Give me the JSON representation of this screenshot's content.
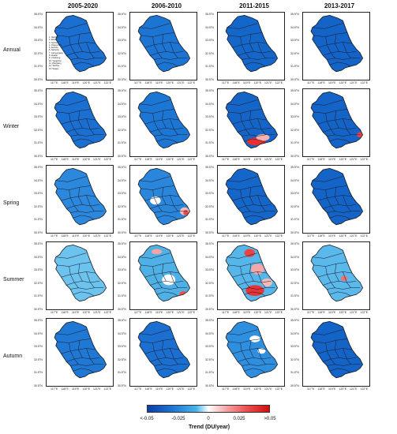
{
  "columns": [
    "2005-2020",
    "2006-2010",
    "2011-2015",
    "2013-2017"
  ],
  "rows": [
    "Annual",
    "Winter",
    "Spring",
    "Summer",
    "Autumn"
  ],
  "y_ticks": [
    "35.5°N",
    "34.5°N",
    "33.5°N",
    "32.5°N",
    "31.5°N",
    "30.5°N"
  ],
  "x_ticks": [
    "117°E",
    "118°E",
    "119°E",
    "120°E",
    "121°E",
    "122°E"
  ],
  "city_legend": [
    "1. Nanjing",
    "2. Wuxi",
    "3. Xuzhou",
    "4. Changzhou",
    "5. Suzhou",
    "6. Nantong",
    "7. Lianyungang",
    "8. Huaian",
    "9. Yancheng",
    "10. Yangzhou",
    "11. Zhenjiang",
    "12. Taizhou",
    "13. Suqian"
  ],
  "colorbar": {
    "ticks": [
      "<-0.05",
      "-0.025",
      "0",
      "0.025",
      ">0.05"
    ],
    "title": "Trend (DU/year)",
    "colors": [
      "#0a3fa8",
      "#1e73d2",
      "#46b4ea",
      "#ffffff",
      "#f5a3a3",
      "#ec4e4e",
      "#d20d0d"
    ]
  }
}
